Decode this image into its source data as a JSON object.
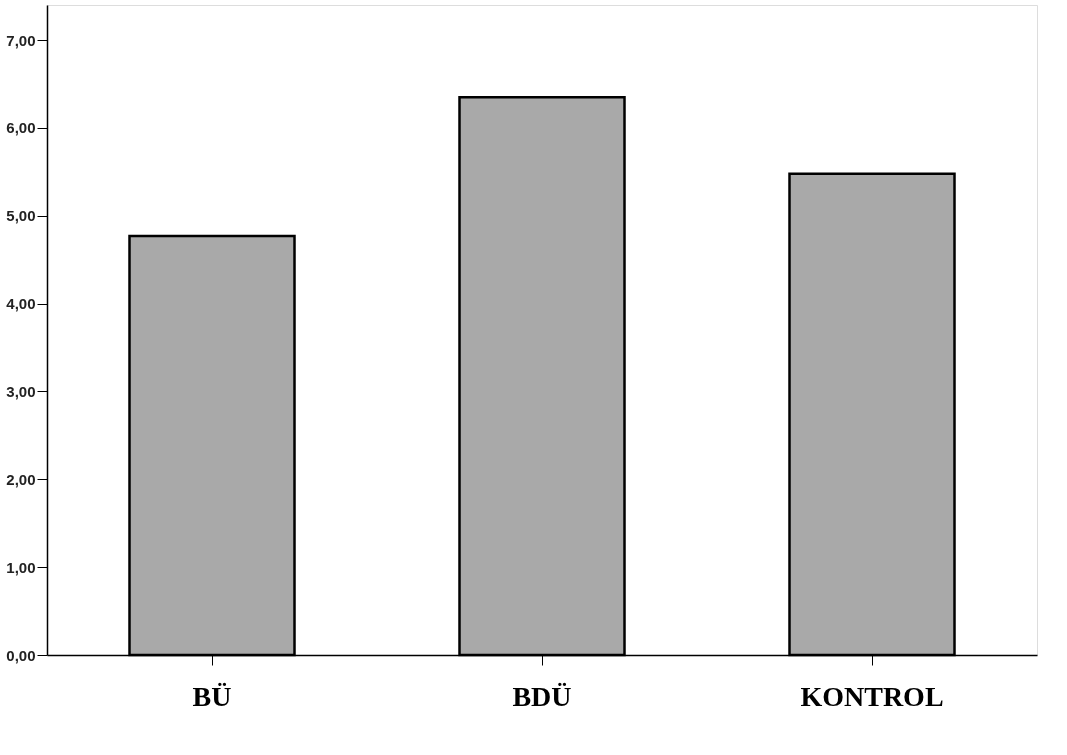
{
  "chart_data": {
    "type": "bar",
    "categories": [
      "BÜ",
      "BDÜ",
      "KONTROL"
    ],
    "values": [
      4.77,
      6.35,
      5.48
    ],
    "color": "#a9a9a9",
    "ylim": [
      0,
      7.4
    ],
    "yticks": [
      {
        "value": 0,
        "label": "0,00"
      },
      {
        "value": 1,
        "label": "1,00"
      },
      {
        "value": 2,
        "label": "2,00"
      },
      {
        "value": 3,
        "label": "3,00"
      },
      {
        "value": 4,
        "label": "4,00"
      },
      {
        "value": 5,
        "label": "5,00"
      },
      {
        "value": 6,
        "label": "6,00"
      },
      {
        "value": 7,
        "label": "7,00"
      }
    ],
    "grid": false
  }
}
